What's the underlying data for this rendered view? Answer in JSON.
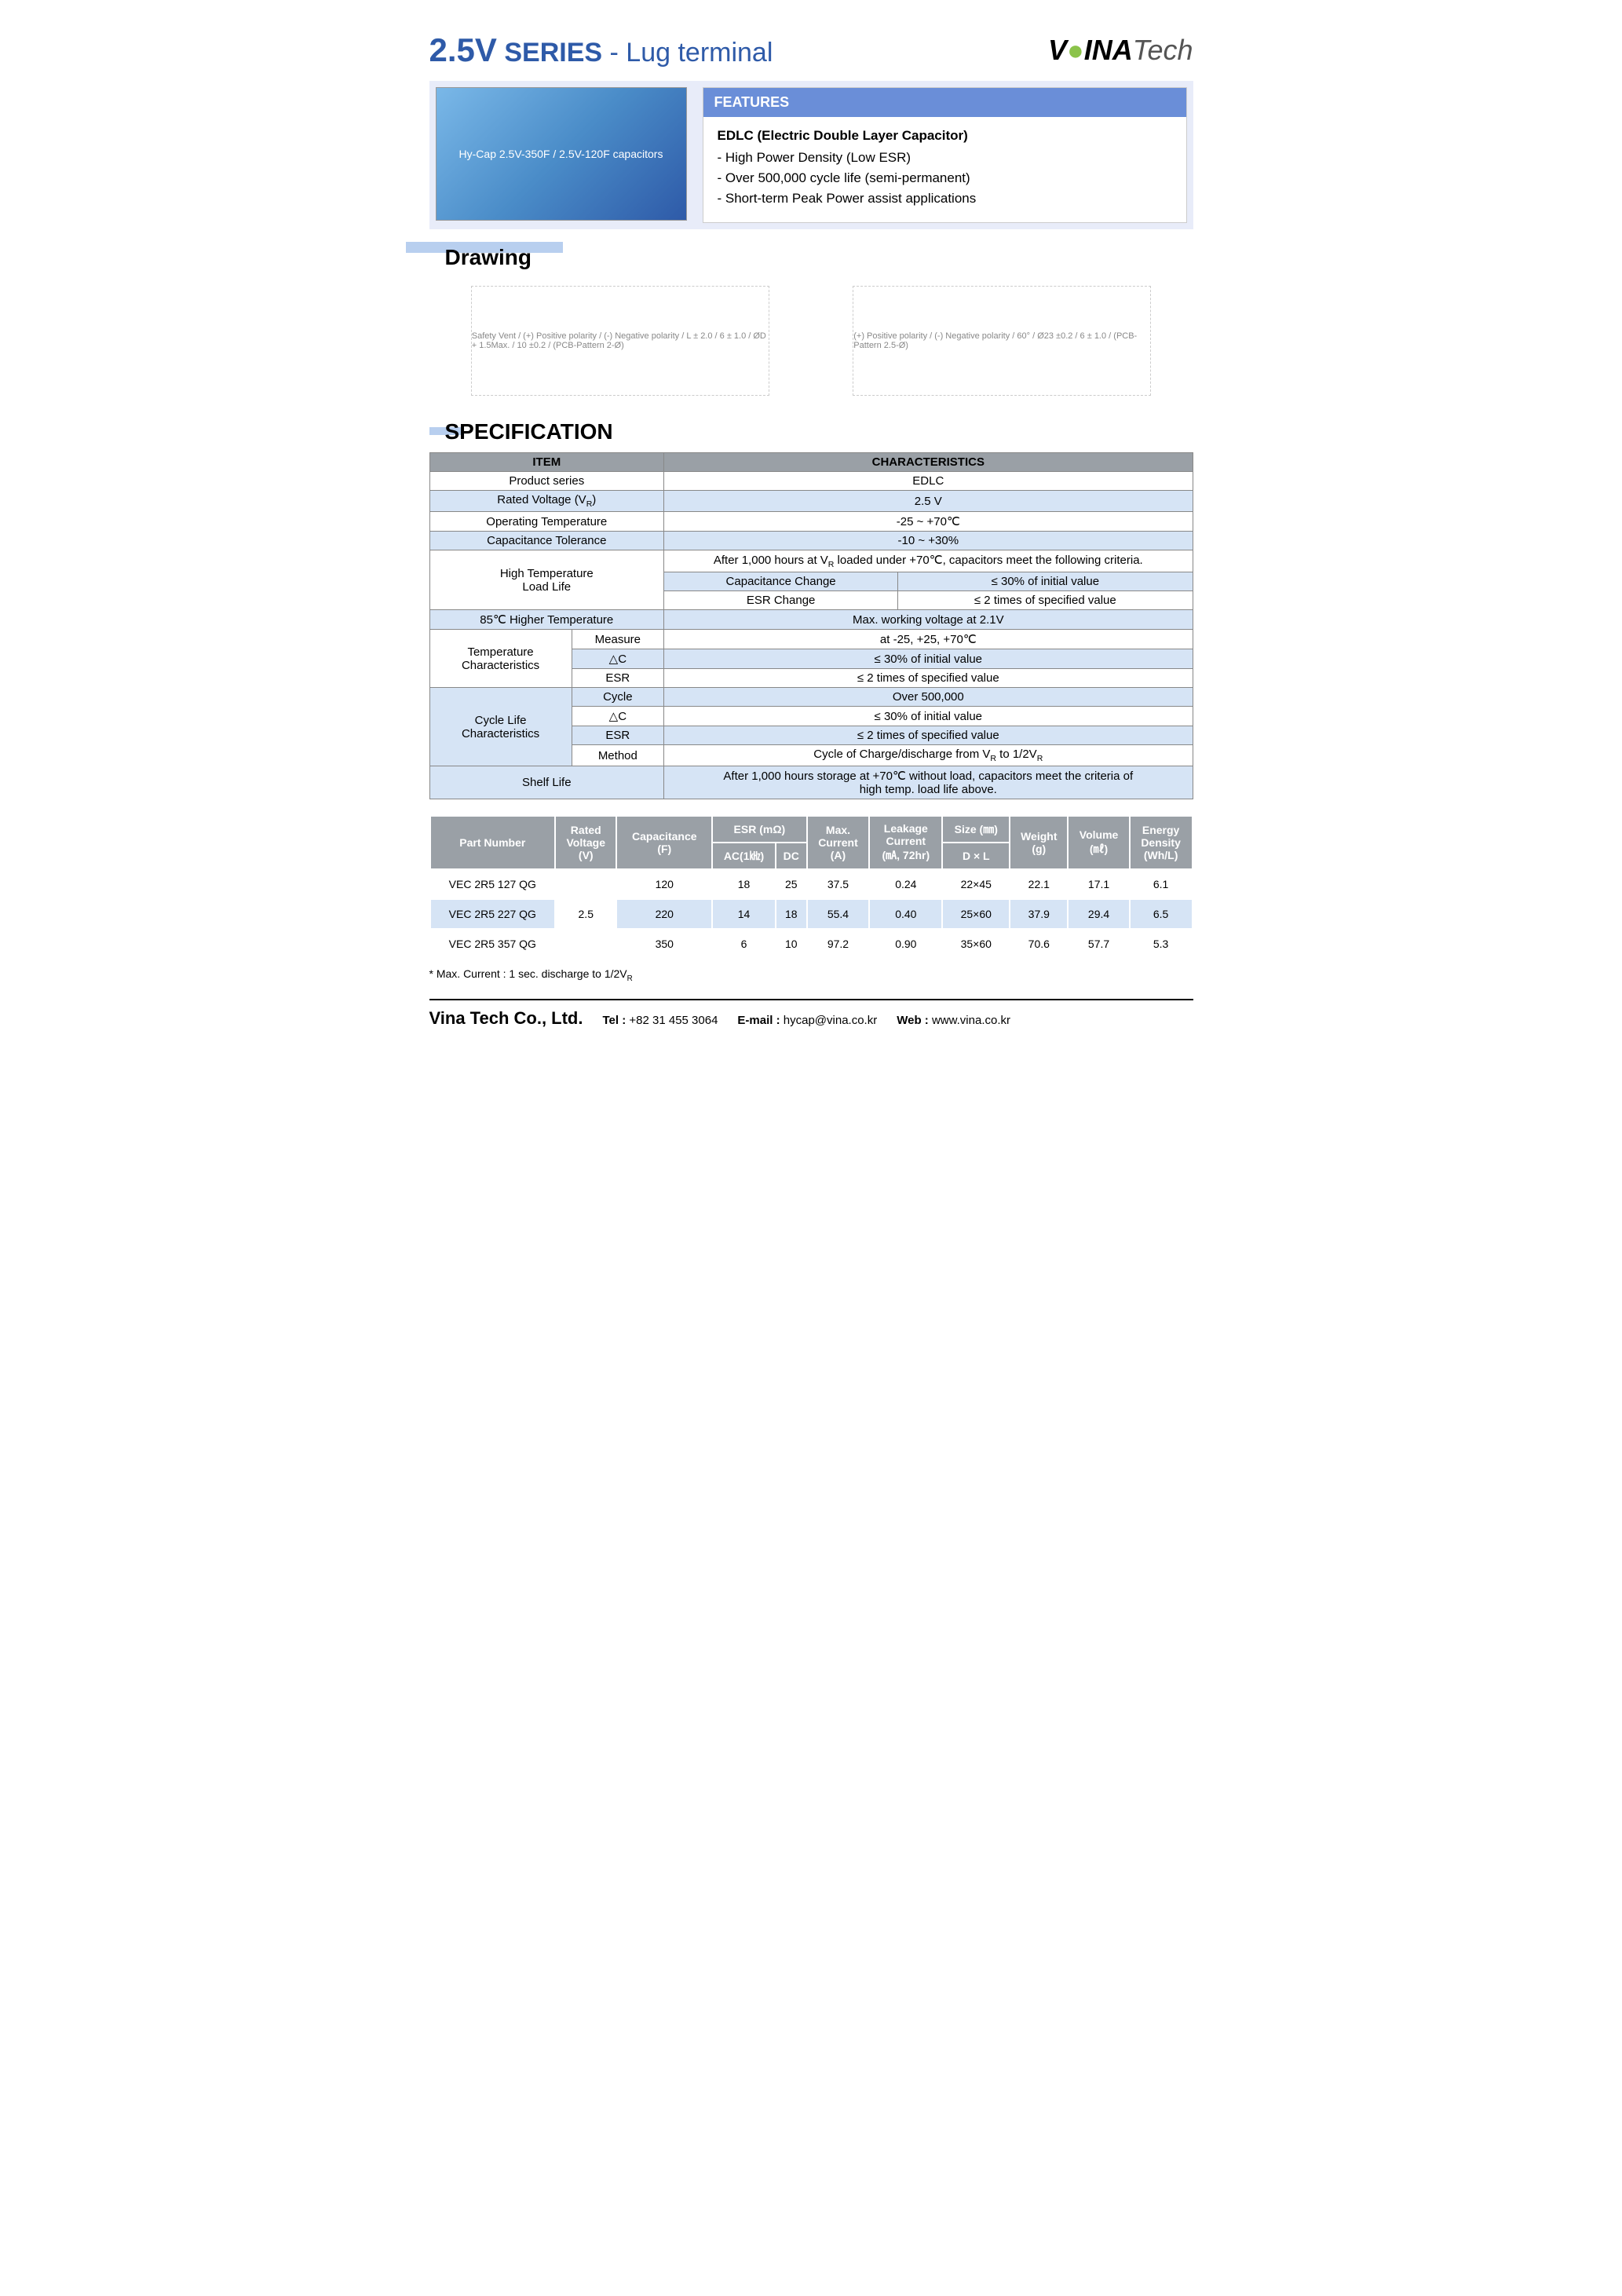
{
  "title": {
    "voltage": "2.5V",
    "series": "SERIES",
    "subtitle": "- Lug terminal"
  },
  "logo": {
    "text_v": "V",
    "text_ina": "INA",
    "text_tech": "Tech"
  },
  "product_image_alt": "Hy-Cap 2.5V-350F / 2.5V-120F capacitors",
  "features": {
    "header": "FEATURES",
    "subtitle": "EDLC (Electric Double Layer Capacitor)",
    "items": [
      "- High Power Density (Low ESR)",
      "- Over 500,000 cycle life (semi-permanent)",
      "- Short-term Peak Power assist applications"
    ]
  },
  "drawing": {
    "title": "Drawing",
    "labels": {
      "left": "Safety Vent / (+) Positive polarity / (-) Negative polarity / L ± 2.0 / 6 ± 1.0 / ØD + 1.5Max. / 10 ±0.2 / (PCB-Pattern 2-Ø)",
      "right": "(+) Positive polarity / (-) Negative polarity / 60° / Ø23 ±0.2 / 6 ± 1.0 / (PCB-Pattern 2.5-Ø)"
    }
  },
  "specification": {
    "title": "SPECIFICATION",
    "header_item": "ITEM",
    "header_char": "CHARACTERISTICS",
    "rows": [
      {
        "item": "Product series",
        "value": "EDLC"
      },
      {
        "item": "Rated Voltage (V_R)",
        "value": "2.5 V"
      },
      {
        "item": "Operating Temperature",
        "value": "-25 ~ +70℃"
      },
      {
        "item": "Capacitance Tolerance",
        "value": "-10 ~ +30%"
      }
    ],
    "high_temp": {
      "label": "High Temperature\nLoad Life",
      "top": "After 1,000 hours at V_R loaded under +70℃, capacitors meet  the following criteria.",
      "cap_change_label": "Capacitance Change",
      "cap_change_val": "≤ 30% of initial value",
      "esr_change_label": "ESR Change",
      "esr_change_val": "≤ 2 times of specified value"
    },
    "higher_temp": {
      "label": "85℃ Higher Temperature",
      "value": "Max. working voltage at 2.1V"
    },
    "temp_char": {
      "label": "Temperature\nCharacteristics",
      "measure_label": "Measure",
      "measure_val": "at -25, +25, +70℃",
      "dc_label": "△C",
      "dc_val": "≤ 30% of initial value",
      "esr_label": "ESR",
      "esr_val": "≤ 2 times of specified value"
    },
    "cycle": {
      "label": "Cycle Life\nCharacteristics",
      "cycle_label": "Cycle",
      "cycle_val": "Over 500,000",
      "dc_label": "△C",
      "dc_val": "≤ 30% of initial value",
      "esr_label": "ESR",
      "esr_val": "≤ 2 times of specified value",
      "method_label": "Method",
      "method_val": "Cycle of Charge/discharge from V_R to 1/2V_R"
    },
    "shelf": {
      "label": "Shelf Life",
      "value": "After 1,000 hours storage at +70℃ without load, capacitors meet the criteria of\nhigh temp. load life above."
    }
  },
  "parts_table": {
    "headers": {
      "part": "Part Number",
      "voltage": "Rated\nVoltage\n(V)",
      "cap": "Capacitance\n(F)",
      "esr": "ESR (mΩ)",
      "esr_ac": "AC(1㎑)",
      "esr_dc": "DC",
      "maxc": "Max.\nCurrent\n(A)",
      "leak": "Leakage\nCurrent\n(㎃, 72hr)",
      "size": "Size (㎜)",
      "size_dl": "D × L",
      "weight": "Weight\n(g)",
      "vol": "Volume\n(㎖)",
      "energy": "Energy\nDensity\n(Wh/L)"
    },
    "rated_voltage": "2.5",
    "rows": [
      {
        "part": "VEC 2R5 127 QG",
        "cap": "120",
        "ac": "18",
        "dc": "25",
        "maxc": "37.5",
        "leak": "0.24",
        "size": "22×45",
        "weight": "22.1",
        "vol": "17.1",
        "energy": "6.1"
      },
      {
        "part": "VEC 2R5 227 QG",
        "cap": "220",
        "ac": "14",
        "dc": "18",
        "maxc": "55.4",
        "leak": "0.40",
        "size": "25×60",
        "weight": "37.9",
        "vol": "29.4",
        "energy": "6.5"
      },
      {
        "part": "VEC 2R5 357 QG",
        "cap": "350",
        "ac": "6",
        "dc": "10",
        "maxc": "97.2",
        "leak": "0.90",
        "size": "35×60",
        "weight": "70.6",
        "vol": "57.7",
        "energy": "5.3"
      }
    ]
  },
  "note": "* Max. Current  : 1 sec. discharge to 1/2V_R",
  "footer": {
    "company": "Vina Tech Co., Ltd.",
    "tel_label": "Tel :",
    "tel": "+82 31 455 3064",
    "email_label": "E-mail :",
    "email": "hycap@vina.co.kr",
    "web_label": "Web :",
    "web": "www.vina.co.kr"
  },
  "colors": {
    "title_blue": "#2e5aa8",
    "panel_bg": "#e8ecf9",
    "feature_header": "#6a8ed8",
    "table_header": "#9aa0a6",
    "row_blue": "#d6e4f5"
  }
}
